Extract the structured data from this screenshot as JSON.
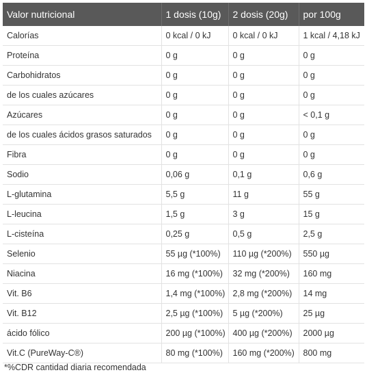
{
  "table": {
    "headers": [
      "Valor nutricional",
      "1 dosis (10g)",
      "2 dosis (20g)",
      "por 100g"
    ],
    "rows": [
      [
        "Calorías",
        "0 kcal / 0 kJ",
        "0 kcal / 0 kJ",
        "1 kcal / 4,18 kJ"
      ],
      [
        "Proteína",
        "0 g",
        "0 g",
        "0 g"
      ],
      [
        "Carbohidratos",
        "0 g",
        "0 g",
        "0 g"
      ],
      [
        "de los cuales azúcares",
        "0 g",
        "0 g",
        "0 g"
      ],
      [
        "Azúcares",
        "0 g",
        "0 g",
        "< 0,1 g"
      ],
      [
        "de los cuales ácidos grasos saturados",
        "0 g",
        "0 g",
        "0 g"
      ],
      [
        "Fibra",
        "0 g",
        "0 g",
        "0 g"
      ],
      [
        "Sodio",
        "0,06 g",
        "0,1 g",
        "0,6 g"
      ],
      [
        "L-glutamina",
        "5,5 g",
        "11 g",
        "55 g"
      ],
      [
        "L-leucina",
        "1,5 g",
        "3 g",
        "15 g"
      ],
      [
        "L-cisteína",
        "0,25 g",
        "0,5 g",
        "2,5 g"
      ],
      [
        "Selenio",
        "55 µg (*100%)",
        "110 µg (*200%)",
        "550 µg"
      ],
      [
        "Niacina",
        "16 mg (*100%)",
        "32 mg (*200%)",
        "160 mg"
      ],
      [
        "Vit. B6",
        "1,4 mg (*100%)",
        "2,8 mg (*200%)",
        "14 mg"
      ],
      [
        "Vit. B12",
        "2,5 µg (*100%)",
        "5 µg (*200%)",
        "25 µg"
      ],
      [
        "ácido fólico",
        "200 µg (*100%)",
        "400 µg (*200%)",
        "2000 µg"
      ],
      [
        "Vit.C (PureWay-C®)",
        "80 mg (*100%)",
        "160 mg (*200%)",
        "800 mg"
      ]
    ]
  },
  "footnote": "*%CDR cantidad diaria recomendada",
  "colors": {
    "header_bg": "#595959",
    "header_text": "#ffffff",
    "border": "#e2e2e2",
    "text": "#333333"
  }
}
